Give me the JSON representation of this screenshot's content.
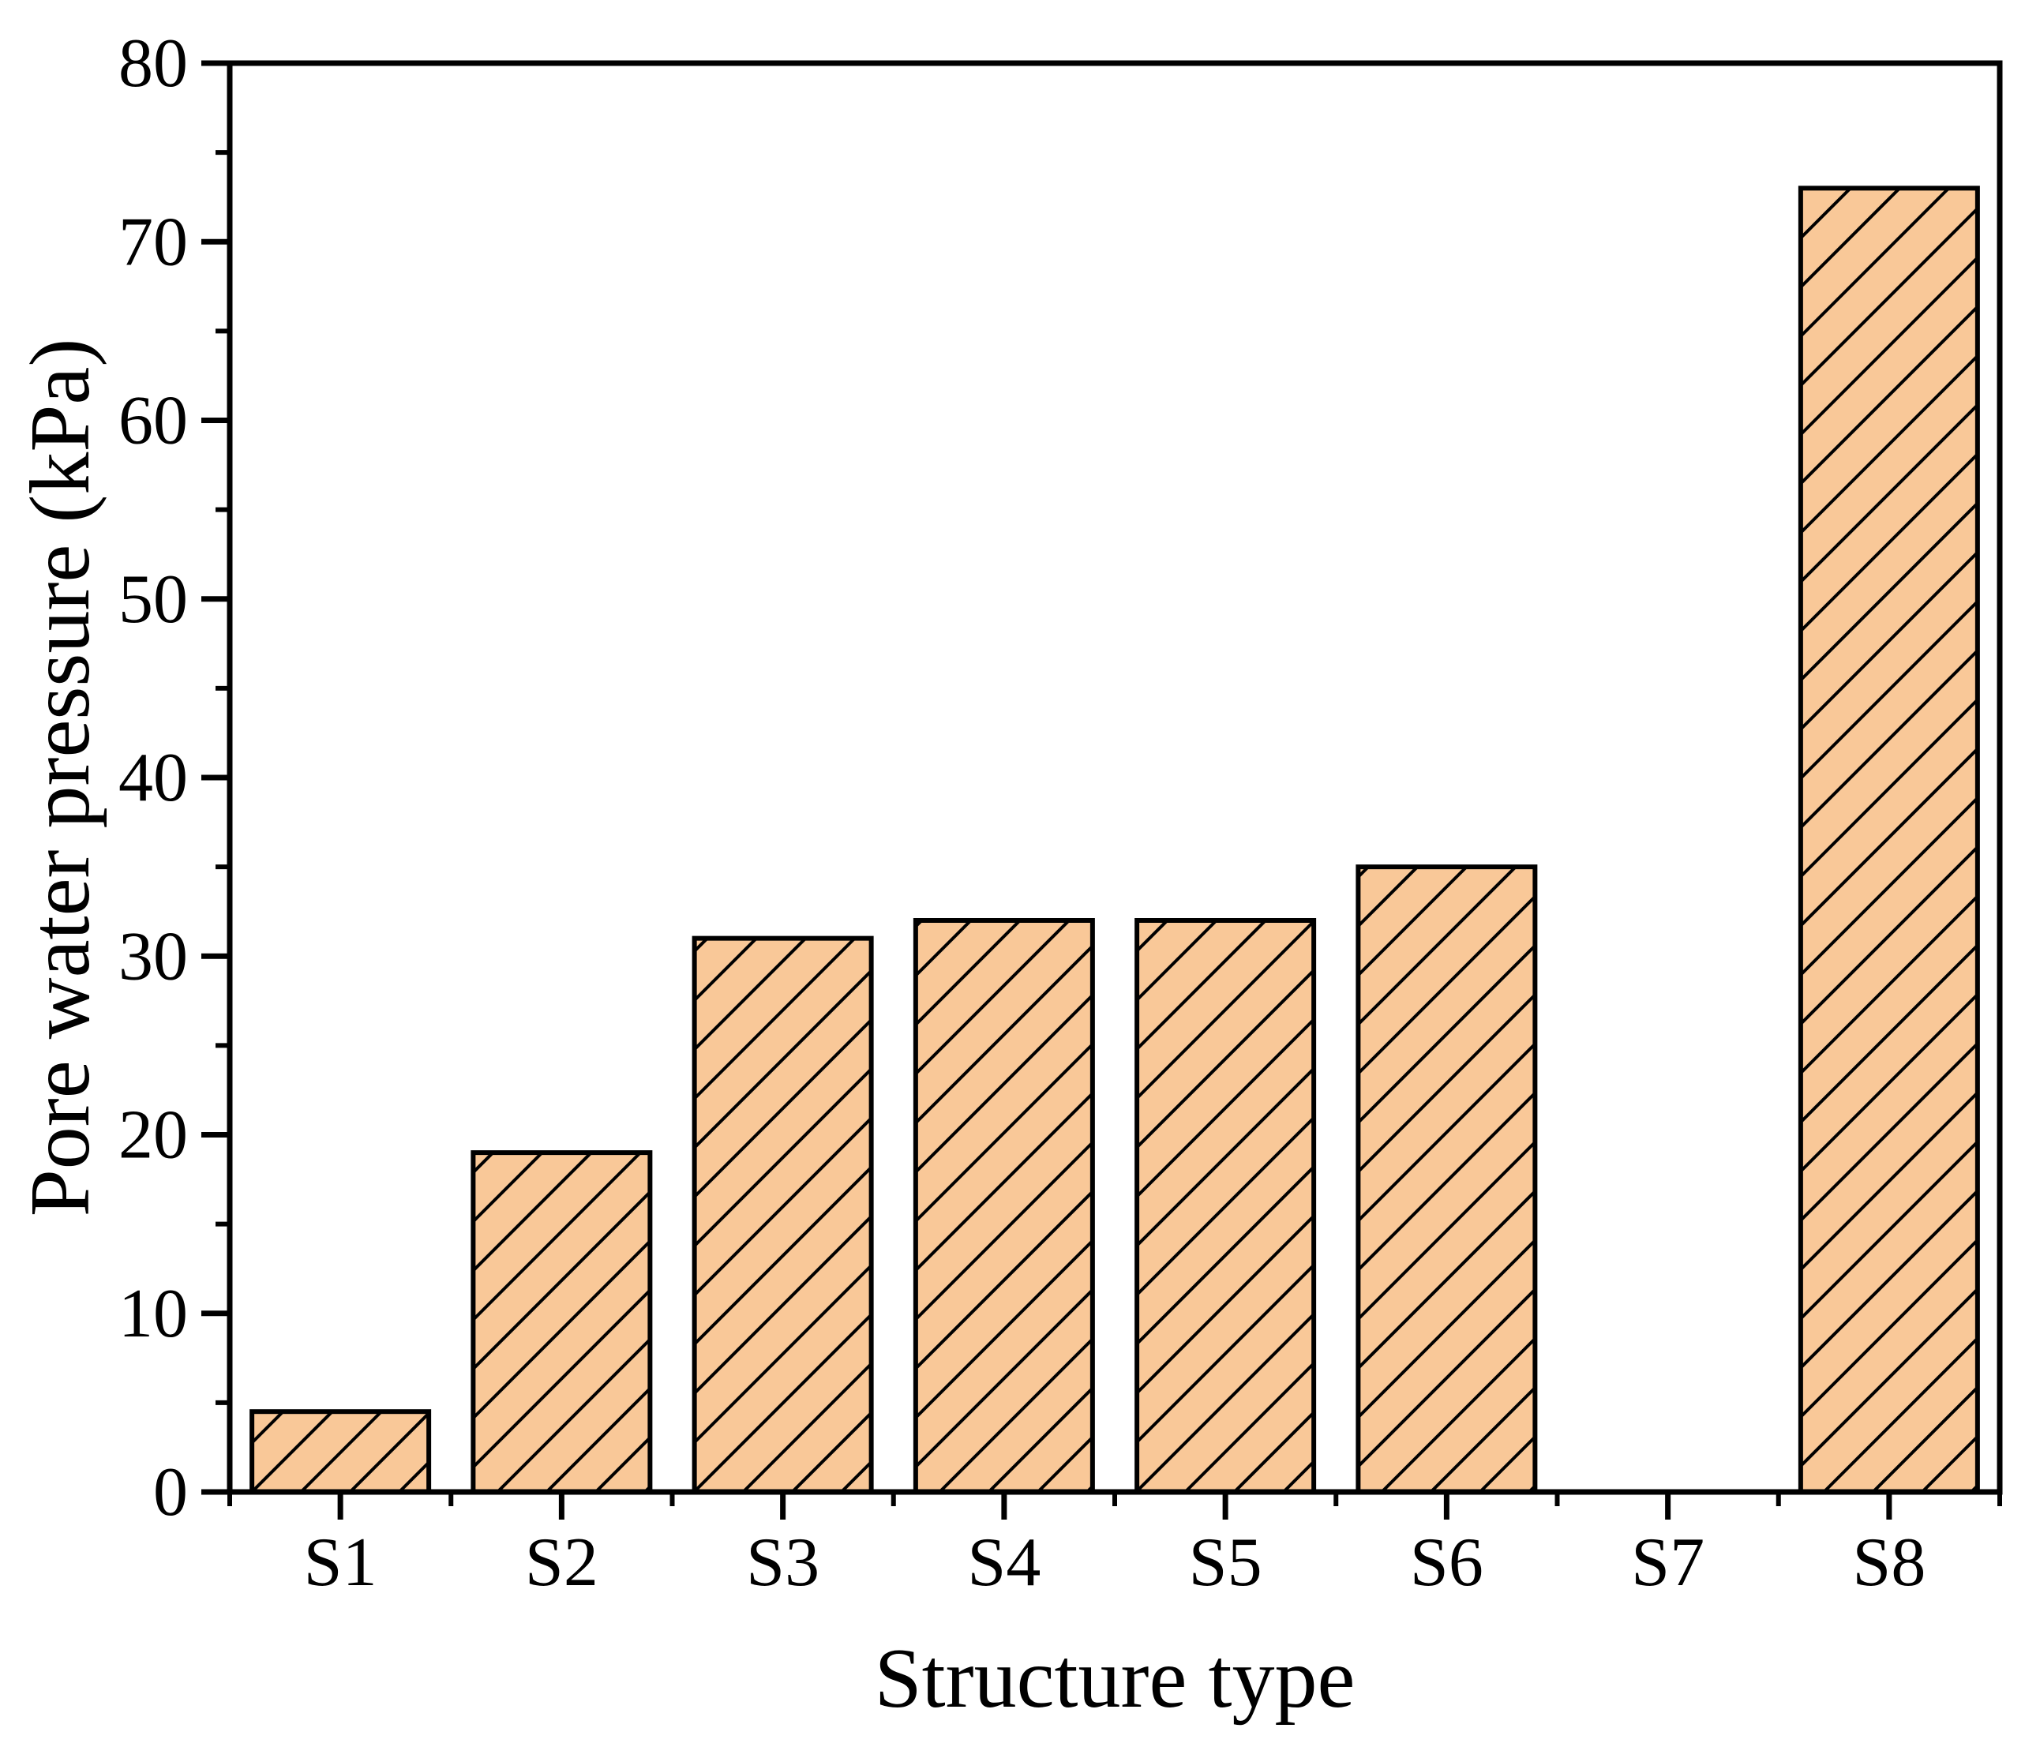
{
  "chart_data": {
    "type": "bar",
    "title": "",
    "categories": [
      "S1",
      "S2",
      "S3",
      "S4",
      "S5",
      "S6",
      "S7",
      "S8"
    ],
    "values": [
      4.5,
      19,
      31,
      32,
      32,
      35,
      0,
      73
    ],
    "xlabel": "Structure type",
    "ylabel": "Pore water pressure (kPa)",
    "ylim": [
      0,
      80
    ],
    "y_major_tick_step": 10,
    "y_minor_tick_step": 5,
    "y_tick_labels": [
      "0",
      "10",
      "20",
      "30",
      "40",
      "50",
      "60",
      "70",
      "80"
    ],
    "grid": false,
    "legend": null,
    "bar_fill_color": "#F9C898",
    "bar_edge_color": "#000000",
    "hatch_style": "forward-diagonal-45",
    "hatch_color": "#000000",
    "axis_color": "#000000",
    "background_color": "#FFFFFF"
  }
}
